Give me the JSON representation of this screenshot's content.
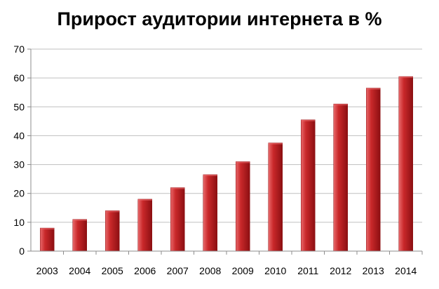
{
  "chart_data": {
    "type": "bar",
    "title": "Прирост аудитории интернета в %",
    "categories": [
      "2003",
      "2004",
      "2005",
      "2006",
      "2007",
      "2008",
      "2009",
      "2010",
      "2011",
      "2012",
      "2013",
      "2014"
    ],
    "values": [
      8,
      11,
      14,
      18,
      22,
      26.5,
      31,
      37.5,
      45.5,
      51,
      56.5,
      60.5
    ],
    "xlabel": "",
    "ylabel": "",
    "ylim": [
      0,
      70
    ],
    "yticks": [
      0,
      10,
      20,
      30,
      40,
      50,
      60,
      70
    ],
    "grid": true,
    "legend": "none",
    "colors": {
      "bar_light": "#e8696b",
      "bar_mid": "#c9282a",
      "bar_dark": "#8c0f12",
      "grid": "#bfbfbf",
      "axis": "#8c8c8c"
    }
  }
}
